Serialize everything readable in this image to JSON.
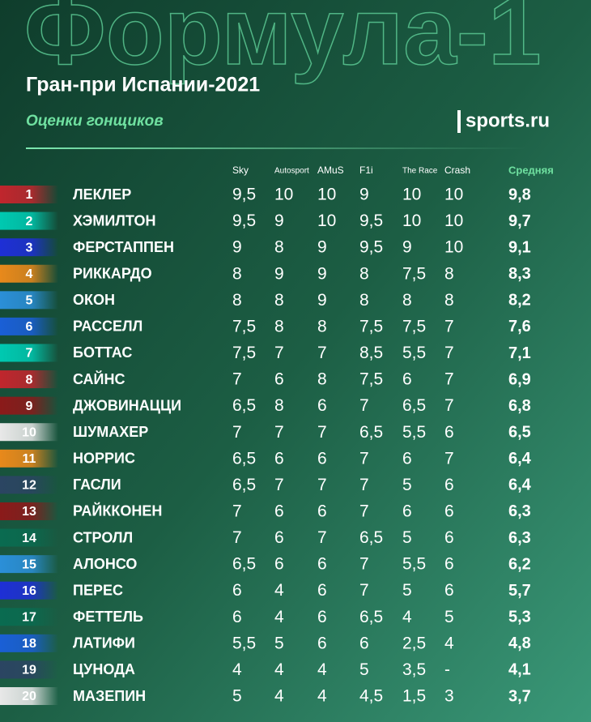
{
  "header": {
    "brand": "Формула-1",
    "title": "Гран-при Испании-2021",
    "subtitle": "Оценки гонщиков",
    "logo": "sports.ru"
  },
  "table": {
    "columns": [
      "Sky",
      "Autosport",
      "AMuS",
      "F1i",
      "The Race",
      "Crash",
      "Средняя"
    ],
    "rows": [
      {
        "position": "1",
        "name": "ЛЕКЛЕР",
        "scores": [
          "9,5",
          "10",
          "10",
          "9",
          "10",
          "10",
          "9,8"
        ],
        "color": "#c0262d"
      },
      {
        "position": "2",
        "name": "ХЭМИЛТОН",
        "scores": [
          "9,5",
          "9",
          "10",
          "9,5",
          "10",
          "10",
          "9,7"
        ],
        "color": "#00c9b1"
      },
      {
        "position": "3",
        "name": "ФЕРСТАППЕН",
        "scores": [
          "9",
          "8",
          "9",
          "9,5",
          "9",
          "10",
          "9,1"
        ],
        "color": "#1e2fd6"
      },
      {
        "position": "4",
        "name": "РИККАРДО",
        "scores": [
          "8",
          "9",
          "9",
          "8",
          "7,5",
          "8",
          "8,3"
        ],
        "color": "#e8891b"
      },
      {
        "position": "5",
        "name": "ОКОН",
        "scores": [
          "8",
          "8",
          "9",
          "8",
          "8",
          "8",
          "8,2"
        ],
        "color": "#2b8fd8"
      },
      {
        "position": "6",
        "name": "РАССЕЛЛ",
        "scores": [
          "7,5",
          "8",
          "8",
          "7,5",
          "7,5",
          "7",
          "7,6"
        ],
        "color": "#1a5fd6"
      },
      {
        "position": "7",
        "name": "БОТТАС",
        "scores": [
          "7,5",
          "7",
          "7",
          "8,5",
          "5,5",
          "7",
          "7,1"
        ],
        "color": "#00c9b1"
      },
      {
        "position": "8",
        "name": "САЙНС",
        "scores": [
          "7",
          "6",
          "8",
          "7,5",
          "6",
          "7",
          "6,9"
        ],
        "color": "#c0262d"
      },
      {
        "position": "9",
        "name": "ДЖОВИНАЦЦИ",
        "scores": [
          "6,5",
          "8",
          "6",
          "7",
          "6,5",
          "7",
          "6,8"
        ],
        "color": "#8b1a1a"
      },
      {
        "position": "10",
        "name": "ШУМАХЕР",
        "scores": [
          "7",
          "7",
          "7",
          "6,5",
          "5,5",
          "6",
          "6,5"
        ],
        "color": "#e8e8e8"
      },
      {
        "position": "11",
        "name": "НОРРИС",
        "scores": [
          "6,5",
          "6",
          "6",
          "7",
          "6",
          "7",
          "6,4"
        ],
        "color": "#e8891b"
      },
      {
        "position": "12",
        "name": "ГАСЛИ",
        "scores": [
          "6,5",
          "7",
          "7",
          "7",
          "5",
          "6",
          "6,4"
        ],
        "color": "#2b4562"
      },
      {
        "position": "13",
        "name": "РАЙККОНЕН",
        "scores": [
          "7",
          "6",
          "6",
          "7",
          "6",
          "6",
          "6,3"
        ],
        "color": "#8b1a1a"
      },
      {
        "position": "14",
        "name": "СТРОЛЛ",
        "scores": [
          "7",
          "6",
          "7",
          "6,5",
          "5",
          "6",
          "6,3"
        ],
        "color": "#0a6b50"
      },
      {
        "position": "15",
        "name": "АЛОНСО",
        "scores": [
          "6,5",
          "6",
          "6",
          "7",
          "5,5",
          "6",
          "6,2"
        ],
        "color": "#2b8fd8"
      },
      {
        "position": "16",
        "name": "ПЕРЕС",
        "scores": [
          "6",
          "4",
          "6",
          "7",
          "5",
          "6",
          "5,7"
        ],
        "color": "#1e2fd6"
      },
      {
        "position": "17",
        "name": "ФЕТТЕЛЬ",
        "scores": [
          "6",
          "4",
          "6",
          "6,5",
          "4",
          "5",
          "5,3"
        ],
        "color": "#0a6b50"
      },
      {
        "position": "18",
        "name": "ЛАТИФИ",
        "scores": [
          "5,5",
          "5",
          "6",
          "6",
          "2,5",
          "4",
          "4,8"
        ],
        "color": "#1a5fd6"
      },
      {
        "position": "19",
        "name": "ЦУНОДА",
        "scores": [
          "4",
          "4",
          "4",
          "5",
          "3,5",
          "-",
          "4,1"
        ],
        "color": "#2b4562"
      },
      {
        "position": "20",
        "name": "МАЗЕПИН",
        "scores": [
          "5",
          "4",
          "4",
          "4,5",
          "1,5",
          "3",
          "3,7"
        ],
        "color": "#e8e8e8"
      }
    ]
  }
}
